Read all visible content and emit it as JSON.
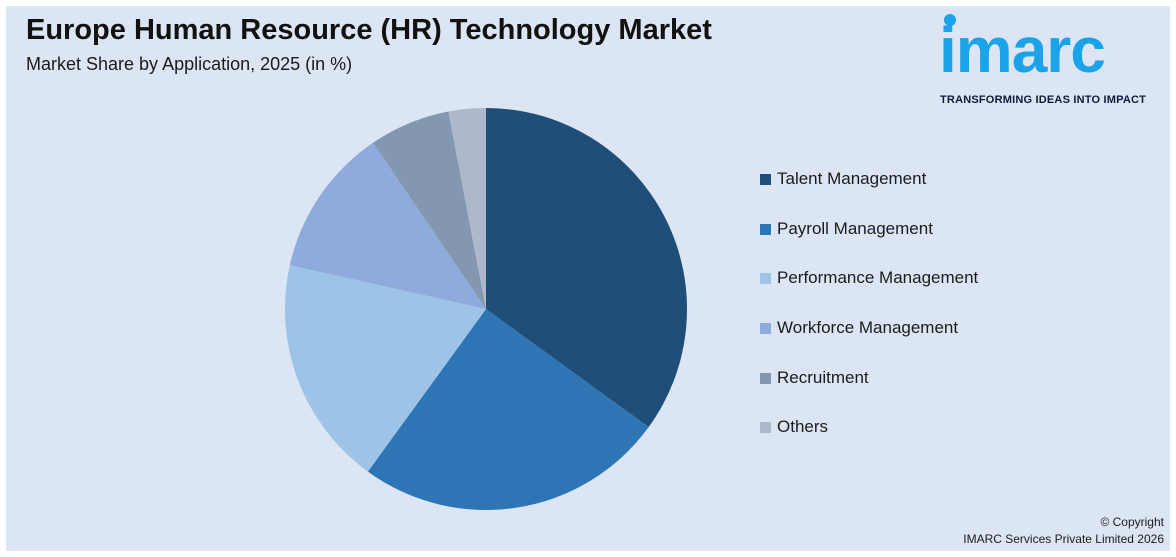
{
  "header": {
    "title": "Europe Human Resource (HR) Technology Market",
    "subtitle": "Market Share by Application, 2025 (in %)"
  },
  "logo": {
    "wordmark": "imarc",
    "tagline": "TRANSFORMING IDEAS INTO IMPACT",
    "color": "#1aa3e8"
  },
  "chart_data": {
    "type": "pie",
    "title": "Europe Human Resource (HR) Technology Market",
    "subtitle": "Market Share by Application, 2025 (in %)",
    "legend_position": "right",
    "categories": [
      "Talent Management",
      "Payroll Management",
      "Performance Management",
      "Workforce Management",
      "Recruitment",
      "Others"
    ],
    "values": [
      35,
      25,
      18.5,
      12,
      6.5,
      3
    ],
    "colors": [
      "#1f4e79",
      "#2e75b6",
      "#9dc3e6",
      "#8faadc",
      "#8497b0",
      "#adb9ca"
    ]
  },
  "footer": {
    "copyright_line1": "© Copyright",
    "copyright_line2": "IMARC Services Private Limited 2026"
  }
}
